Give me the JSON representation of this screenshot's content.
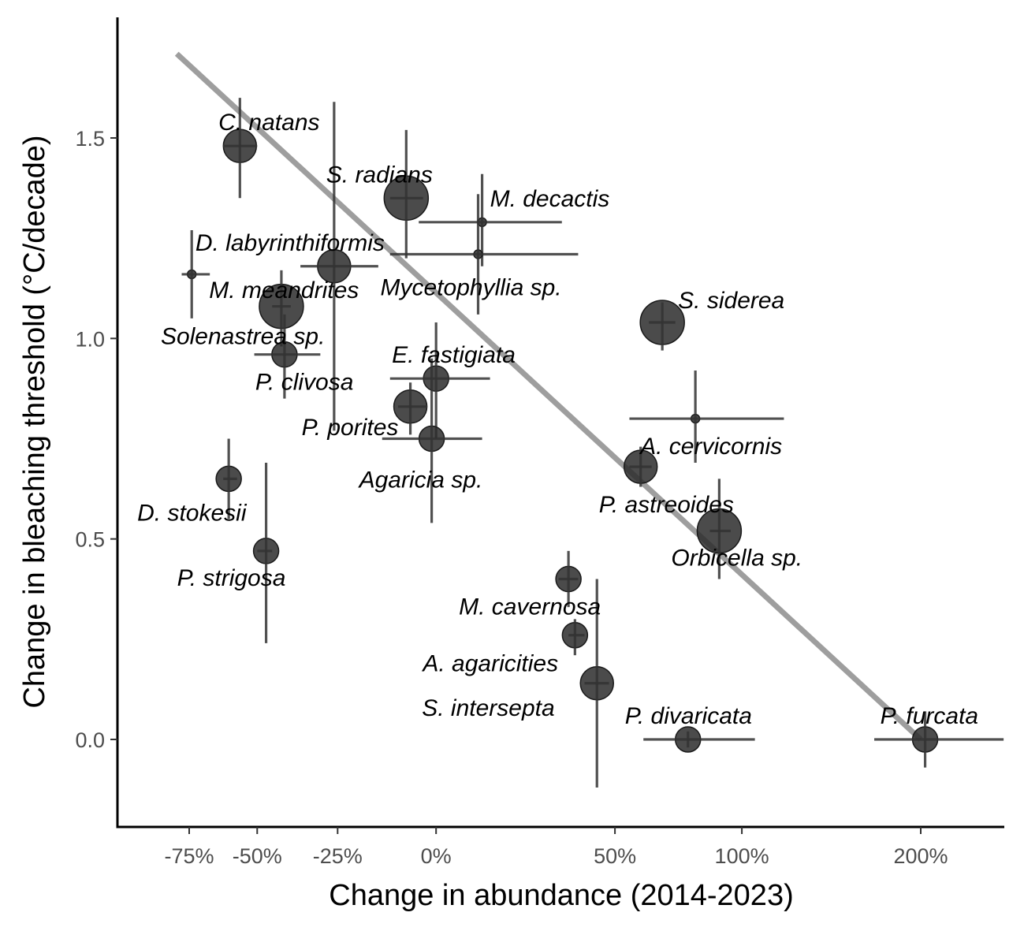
{
  "chart_data": {
    "type": "scatter",
    "title": "",
    "xlabel": "Change in abundance (2014-2023)",
    "ylabel": "Change in bleaching threshold (°C/decade)",
    "x_scale": "signed-log",
    "x_ticks": [
      {
        "value": -75,
        "label": "-75%"
      },
      {
        "value": -50,
        "label": "-50%"
      },
      {
        "value": -25,
        "label": "-25%"
      },
      {
        "value": 0,
        "label": "0%"
      },
      {
        "value": 50,
        "label": "50%"
      },
      {
        "value": 100,
        "label": "100%"
      },
      {
        "value": 200,
        "label": "200%"
      }
    ],
    "y_ticks": [
      {
        "value": 0.0,
        "label": "0.0"
      },
      {
        "value": 0.5,
        "label": "0.5"
      },
      {
        "value": 1.0,
        "label": "1.0"
      },
      {
        "value": 1.5,
        "label": "1.5"
      }
    ],
    "xlim": [
      -80,
      300
    ],
    "ylim": [
      -0.21,
      1.72
    ],
    "grid": false,
    "legend": "none",
    "trend_line": {
      "x": [
        -80,
        200
      ],
      "y": [
        1.71,
        0.0
      ],
      "color": "#999999"
    },
    "point_color": "#2b2b2b",
    "points": [
      {
        "label": "C. natans",
        "x": -56,
        "y": 1.48,
        "x_lo": -62,
        "x_hi": -50,
        "y_lo": 1.35,
        "y_hi": 1.6,
        "size": 2
      },
      {
        "label": "S. radians",
        "x": -7,
        "y": 1.35,
        "x_lo": -11,
        "x_hi": -3,
        "y_lo": 1.2,
        "y_hi": 1.52,
        "size": 3
      },
      {
        "label": "M. decactis",
        "x": 11,
        "y": 1.29,
        "x_lo": -4,
        "x_hi": 33,
        "y_lo": 1.18,
        "y_hi": 1.41,
        "size": 0
      },
      {
        "label": "Mycetophyllia sp.",
        "x": 10,
        "y": 1.21,
        "x_lo": -11,
        "x_hi": 38,
        "y_lo": 1.06,
        "y_hi": 1.36,
        "size": 0
      },
      {
        "label": "D. labyrinthiformis",
        "x": -26,
        "y": 1.18,
        "x_lo": -36,
        "x_hi": -14,
        "y_lo": 0.77,
        "y_hi": 1.59,
        "size": 2
      },
      {
        "label": "M. meandrites",
        "x": -74,
        "y": 1.16,
        "x_lo": -78,
        "x_hi": -67,
        "y_lo": 1.05,
        "y_hi": 1.27,
        "size": 0
      },
      {
        "label": "Solenastrea sp.",
        "x": -42,
        "y": 1.08,
        "x_lo": -45,
        "x_hi": -39,
        "y_lo": 0.98,
        "y_hi": 1.17,
        "size": 3
      },
      {
        "label": "S. siderea",
        "x": 67,
        "y": 1.04,
        "x_lo": 62,
        "x_hi": 72,
        "y_lo": 0.97,
        "y_hi": 1.09,
        "size": 3
      },
      {
        "label": "P. clivosa",
        "x": -41,
        "y": 0.96,
        "x_lo": -51,
        "x_hi": -30,
        "y_lo": 0.85,
        "y_hi": 1.06,
        "size": 1
      },
      {
        "label": "E. fastigiata",
        "x": 0,
        "y": 0.9,
        "x_lo": -11,
        "x_hi": 13,
        "y_lo": 0.75,
        "y_hi": 1.04,
        "size": 1
      },
      {
        "label": "P. porites",
        "x": -6,
        "y": 0.83,
        "x_lo": -9,
        "x_hi": -2,
        "y_lo": 0.76,
        "y_hi": 0.89,
        "size": 2
      },
      {
        "label": "A. cervicornis",
        "x": 80,
        "y": 0.8,
        "x_lo": 55,
        "x_hi": 120,
        "y_lo": 0.69,
        "y_hi": 0.92,
        "size": 0
      },
      {
        "label": "Agaricia sp.",
        "x": -1,
        "y": 0.75,
        "x_lo": -13,
        "x_hi": 11,
        "y_lo": 0.54,
        "y_hi": 0.95,
        "size": 1
      },
      {
        "label": "P. astreoides",
        "x": 59,
        "y": 0.68,
        "x_lo": 55,
        "x_hi": 63,
        "y_lo": 0.63,
        "y_hi": 0.73,
        "size": 2
      },
      {
        "label": "D. stokesii",
        "x": -60,
        "y": 0.65,
        "x_lo": -62,
        "x_hi": -57,
        "y_lo": 0.55,
        "y_hi": 0.75,
        "size": 1
      },
      {
        "label": "Orbicella sp.",
        "x": 90,
        "y": 0.52,
        "x_lo": 86,
        "x_hi": 95,
        "y_lo": 0.4,
        "y_hi": 0.65,
        "size": 3
      },
      {
        "label": "P. strigosa",
        "x": -47,
        "y": 0.47,
        "x_lo": -50,
        "x_hi": -45,
        "y_lo": 0.24,
        "y_hi": 0.69,
        "size": 1
      },
      {
        "label": "M. cavernosa",
        "x": 35,
        "y": 0.4,
        "x_lo": 32,
        "x_hi": 38,
        "y_lo": 0.33,
        "y_hi": 0.47,
        "size": 1
      },
      {
        "label": "A. agaricities",
        "x": 37,
        "y": 0.26,
        "x_lo": 35,
        "x_hi": 40,
        "y_lo": 0.21,
        "y_hi": 0.3,
        "size": 1
      },
      {
        "label": "S. intersepta",
        "x": 44,
        "y": 0.14,
        "x_lo": 40,
        "x_hi": 48,
        "y_lo": -0.12,
        "y_hi": 0.4,
        "size": 2
      },
      {
        "label": "P. divaricata",
        "x": 77,
        "y": 0.0,
        "x_lo": 60,
        "x_hi": 106,
        "y_lo": -0.02,
        "y_hi": 0.02,
        "size": 1
      },
      {
        "label": "P. furcata",
        "x": 203,
        "y": 0.0,
        "x_lo": 170,
        "x_hi": 262,
        "y_lo": -0.07,
        "y_hi": 0.07,
        "size": 1
      }
    ]
  }
}
